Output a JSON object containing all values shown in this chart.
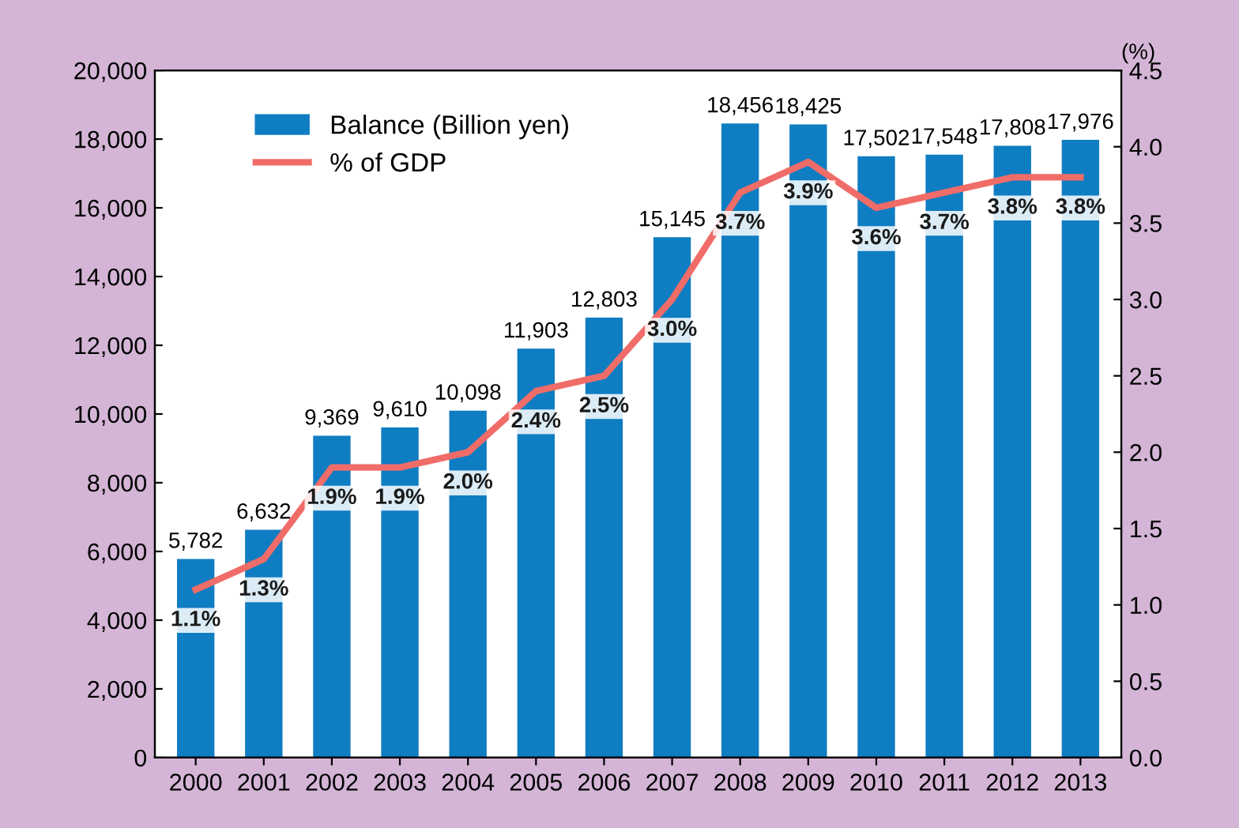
{
  "chart_data": {
    "type": "bar",
    "categories": [
      "2000",
      "2001",
      "2002",
      "2003",
      "2004",
      "2005",
      "2006",
      "2007",
      "2008",
      "2009",
      "2010",
      "2011",
      "2012",
      "2013"
    ],
    "series": [
      {
        "name": "Balance (Billion yen)",
        "color": "#0f7dc2",
        "values": [
          5782,
          6632,
          9369,
          9610,
          10098,
          11903,
          12803,
          15145,
          18456,
          18425,
          17502,
          17548,
          17808,
          17976
        ],
        "value_labels": [
          "5,782",
          "6,632",
          "9,369",
          "9,610",
          "10,098",
          "11,903",
          "12,803",
          "15,145",
          "18,456",
          "18,425",
          "17,502",
          "17,548",
          "17,808",
          "17,976"
        ]
      },
      {
        "name": "% of GDP",
        "type": "line",
        "axis": "y2",
        "color": "#f06c68",
        "values": [
          1.1,
          1.3,
          1.9,
          1.9,
          2.0,
          2.4,
          2.5,
          3.0,
          3.7,
          3.9,
          3.6,
          3.7,
          3.8,
          3.8
        ],
        "value_labels": [
          "1.1%",
          "1.3%",
          "1.9%",
          "1.9%",
          "2.0%",
          "2.4%",
          "2.5%",
          "3.0%",
          "3.7%",
          "3.9%",
          "3.6%",
          "3.7%",
          "3.8%",
          "3.8%"
        ]
      }
    ],
    "y2label": "(%)",
    "ylim": [
      0,
      20000
    ],
    "yticks": [
      {
        "value": 0,
        "label": "0"
      },
      {
        "value": 2000,
        "label": "2,000"
      },
      {
        "value": 4000,
        "label": "4,000"
      },
      {
        "value": 6000,
        "label": "6,000"
      },
      {
        "value": 8000,
        "label": "8,000"
      },
      {
        "value": 10000,
        "label": "10,000"
      },
      {
        "value": 12000,
        "label": "12,000"
      },
      {
        "value": 14000,
        "label": "14,000"
      },
      {
        "value": 16000,
        "label": "16,000"
      },
      {
        "value": 18000,
        "label": "18,000"
      },
      {
        "value": 20000,
        "label": "20,000"
      }
    ],
    "y2lim": [
      0,
      4.5
    ],
    "y2ticks": [
      {
        "value": 0,
        "label": "0.0"
      },
      {
        "value": 0.5,
        "label": "0.5"
      },
      {
        "value": 1,
        "label": "1.0"
      },
      {
        "value": 1.5,
        "label": "1.5"
      },
      {
        "value": 2,
        "label": "2.0"
      },
      {
        "value": 2.5,
        "label": "2.5"
      },
      {
        "value": 3,
        "label": "3.0"
      },
      {
        "value": 3.5,
        "label": "3.5"
      },
      {
        "value": 4,
        "label": "4.0"
      },
      {
        "value": 4.5,
        "label": "4.5"
      }
    ],
    "legend": "top left",
    "grid": false
  }
}
